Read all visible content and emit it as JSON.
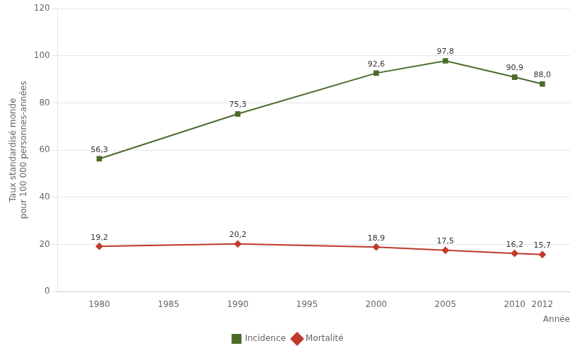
{
  "chart_data": {
    "type": "line",
    "x": [
      1980,
      1990,
      2000,
      2005,
      2010,
      2012
    ],
    "series": [
      {
        "name": "Incidence",
        "color": "#4a6b2a",
        "marker": "square",
        "values": [
          56.3,
          75.3,
          92.6,
          97.8,
          90.9,
          88.0
        ],
        "value_labels": [
          "56,3",
          "75,3",
          "92,6",
          "97,8",
          "90,9",
          "88,0"
        ]
      },
      {
        "name": "Mortalité",
        "color": "#c0392b",
        "marker": "diamond",
        "values": [
          19.2,
          20.2,
          18.9,
          17.5,
          16.2,
          15.7
        ],
        "value_labels": [
          "19,2",
          "20,2",
          "18,9",
          "17,5",
          "16,2",
          "15,7"
        ]
      }
    ],
    "xlabel": "Année",
    "ylabel": "Taux standardisé monde\npour 100 000 personnes-années",
    "xlim": [
      1977,
      2014
    ],
    "xticks": [
      1980,
      1985,
      1990,
      1995,
      2000,
      2005,
      2010,
      2012
    ],
    "ylim": [
      0,
      120
    ],
    "yticks": [
      0,
      20,
      40,
      60,
      80,
      100,
      120
    ],
    "grid": "y",
    "legend": "bottom",
    "data_labels": true
  }
}
